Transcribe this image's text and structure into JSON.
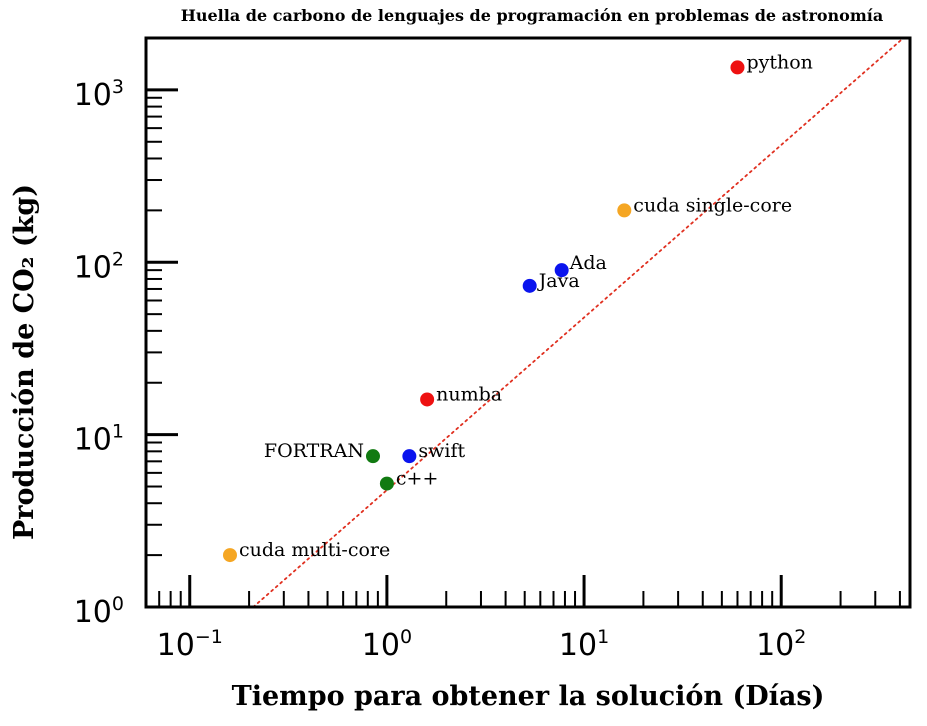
{
  "chart_data": {
    "type": "scatter",
    "title": "Huella de carbono de lenguajes de programación en problemas de astronomía",
    "xlabel": "Tiempo para obtener la solución (Días)",
    "ylabel": "Producción de CO₂ (kg)",
    "x_scale": "log",
    "y_scale": "log",
    "xlim": [
      0.06,
      450
    ],
    "ylim": [
      1,
      2000
    ],
    "x_ticks": [
      {
        "value": 0.1,
        "base": "10",
        "exp": "−1"
      },
      {
        "value": 1,
        "base": "10",
        "exp": "0"
      },
      {
        "value": 10,
        "base": "10",
        "exp": "1"
      },
      {
        "value": 100,
        "base": "10",
        "exp": "2"
      }
    ],
    "y_ticks": [
      {
        "value": 1,
        "base": "10",
        "exp": "0"
      },
      {
        "value": 10,
        "base": "10",
        "exp": "1"
      },
      {
        "value": 100,
        "base": "10",
        "exp": "2"
      },
      {
        "value": 1000,
        "base": "10",
        "exp": "3"
      }
    ],
    "points": [
      {
        "label": "python",
        "x": 60,
        "y": 1350,
        "color": "#ee1111",
        "label_pos": "right"
      },
      {
        "label": "cuda single-core",
        "x": 16,
        "y": 200,
        "color": "#f5a623",
        "label_pos": "right"
      },
      {
        "label": "Ada",
        "x": 7.7,
        "y": 90,
        "color": "#0a14ee",
        "label_pos": "upper-right"
      },
      {
        "label": "Java",
        "x": 5.3,
        "y": 73,
        "color": "#0a14ee",
        "label_pos": "right"
      },
      {
        "label": "numba",
        "x": 1.6,
        "y": 16,
        "color": "#ee1111",
        "label_pos": "right"
      },
      {
        "label": "FORTRAN",
        "x": 0.85,
        "y": 7.5,
        "color": "#117a11",
        "label_pos": "left"
      },
      {
        "label": "swift",
        "x": 1.3,
        "y": 7.5,
        "color": "#0a14ee",
        "label_pos": "right"
      },
      {
        "label": "c++",
        "x": 1.0,
        "y": 5.2,
        "color": "#117a11",
        "label_pos": "right"
      },
      {
        "label": "cuda multi-core",
        "x": 0.16,
        "y": 2.0,
        "color": "#f5a623",
        "label_pos": "right"
      }
    ],
    "reference_line": {
      "style": "dotted",
      "color": "#e03020",
      "from": [
        0.21,
        1
      ],
      "to": [
        500,
        2400
      ]
    },
    "grid": false,
    "legend": "none"
  }
}
